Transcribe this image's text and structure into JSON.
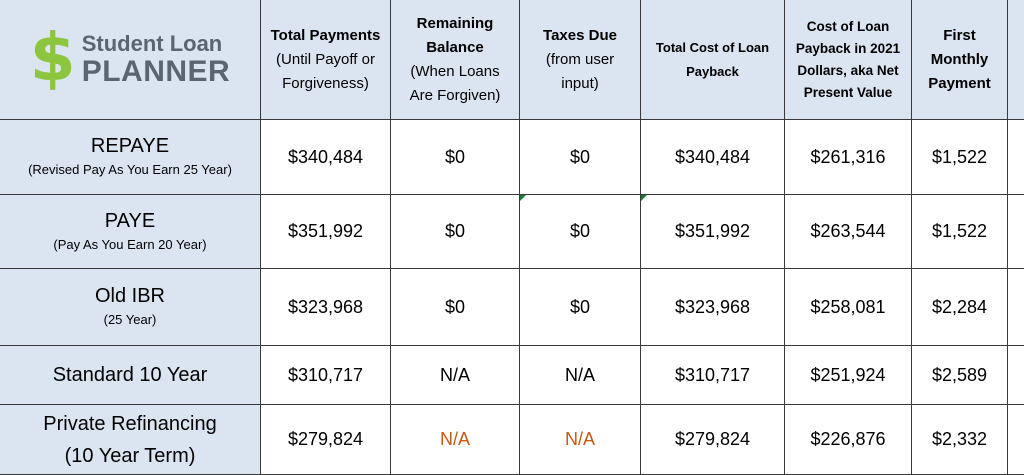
{
  "logo": {
    "symbol": "$",
    "line1": "Student Loan",
    "line2": "PLANNER",
    "symbol_color": "#8cc63f",
    "text_color": "#5a6570"
  },
  "headers": {
    "total_payments": {
      "line1": "Total Payments",
      "line2": "(Until Payoff or",
      "line3": "Forgiveness)"
    },
    "remaining_balance": {
      "line1": "Remaining",
      "line2": "Balance",
      "line3": "(When Loans",
      "line4": "Are Forgiven)"
    },
    "taxes_due": {
      "line1": "Taxes Due",
      "line2": "(from user",
      "line3": "input)"
    },
    "total_cost": {
      "line1": "Total Cost of Loan",
      "line2": "Payback"
    },
    "npv": {
      "line1": "Cost of Loan",
      "line2": "Payback in 2021",
      "line3": "Dollars, aka Net",
      "line4": "Present Value"
    },
    "first_payment": {
      "line1": "First",
      "line2": "Monthly",
      "line3": "Payment"
    }
  },
  "rows": [
    {
      "label": "REPAYE",
      "sublabel": "(Revised Pay As You Earn 25 Year)",
      "total_payments": "$340,484",
      "remaining_balance": "$0",
      "taxes_due": "$0",
      "total_cost": "$340,484",
      "npv": "$261,316",
      "first_payment": "$1,522"
    },
    {
      "label": "PAYE",
      "sublabel": "(Pay As You Earn 20 Year)",
      "total_payments": "$351,992",
      "remaining_balance": "$0",
      "taxes_due": "$0",
      "total_cost": "$351,992",
      "npv": "$263,544",
      "first_payment": "$1,522"
    },
    {
      "label": "Old IBR",
      "sublabel": "(25 Year)",
      "total_payments": "$323,968",
      "remaining_balance": "$0",
      "taxes_due": "$0",
      "total_cost": "$323,968",
      "npv": "$258,081",
      "first_payment": "$2,284"
    },
    {
      "label": "Standard 10 Year",
      "total_payments": "$310,717",
      "remaining_balance": "N/A",
      "taxes_due": "N/A",
      "total_cost": "$310,717",
      "npv": "$251,924",
      "first_payment": "$2,589"
    },
    {
      "label": "Private Refinancing",
      "sublabel": "(10 Year Term)",
      "total_payments": "$279,824",
      "remaining_balance": "N/A",
      "taxes_due": "N/A",
      "total_cost": "$279,824",
      "npv": "$226,876",
      "first_payment": "$2,332"
    }
  ],
  "colors": {
    "header_bg": "#dbe5f1",
    "na_highlight": "#c55a11",
    "border": "#3a3a3a"
  }
}
